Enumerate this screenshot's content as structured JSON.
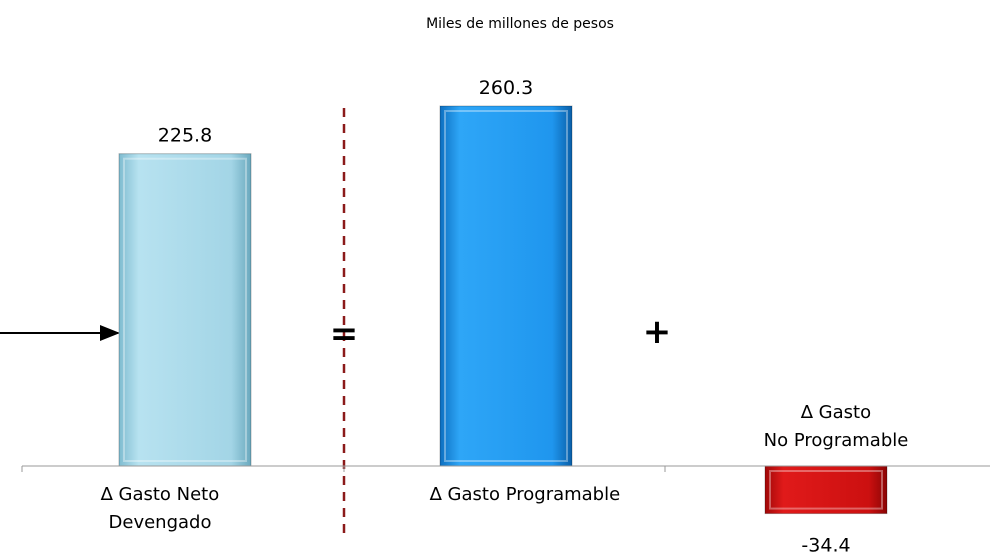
{
  "chart_data": {
    "type": "bar",
    "subtitle": "Miles de millones de pesos",
    "categories": [
      [
        "∆ Gasto Neto",
        "Devengado"
      ],
      [
        "∆ Gasto Programable"
      ],
      [
        "∆  Gasto",
        "No Programable"
      ]
    ],
    "values": [
      225.8,
      260.3,
      -34.4
    ],
    "value_labels": [
      "225.8",
      "260.3",
      "-34.4"
    ],
    "operators": [
      "=",
      "+"
    ],
    "colors": [
      "#a8d8ea",
      "#1f96ee",
      "#d01010"
    ],
    "ylim": [
      -34.4,
      260.3
    ],
    "grid": false,
    "legend": "none"
  }
}
